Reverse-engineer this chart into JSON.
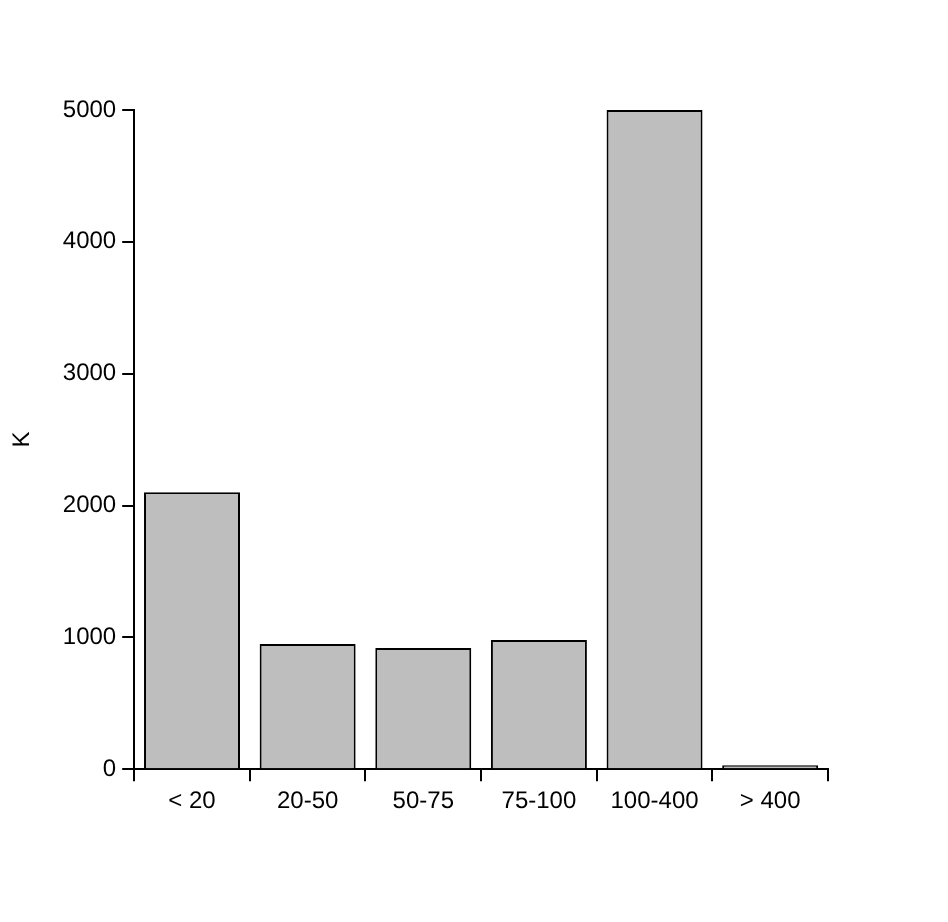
{
  "chart_data": {
    "type": "bar",
    "ylabel": "K",
    "categories": [
      "< 20",
      "20-50",
      "50-75",
      "75-100",
      "100-400",
      "> 400"
    ],
    "values": [
      2100,
      950,
      920,
      980,
      5000,
      30
    ],
    "color": "#bebebe",
    "ylim": [
      0,
      5000
    ],
    "yticks": [
      0,
      1000,
      2000,
      3000,
      4000,
      5000
    ],
    "grid": false,
    "legend": false
  }
}
